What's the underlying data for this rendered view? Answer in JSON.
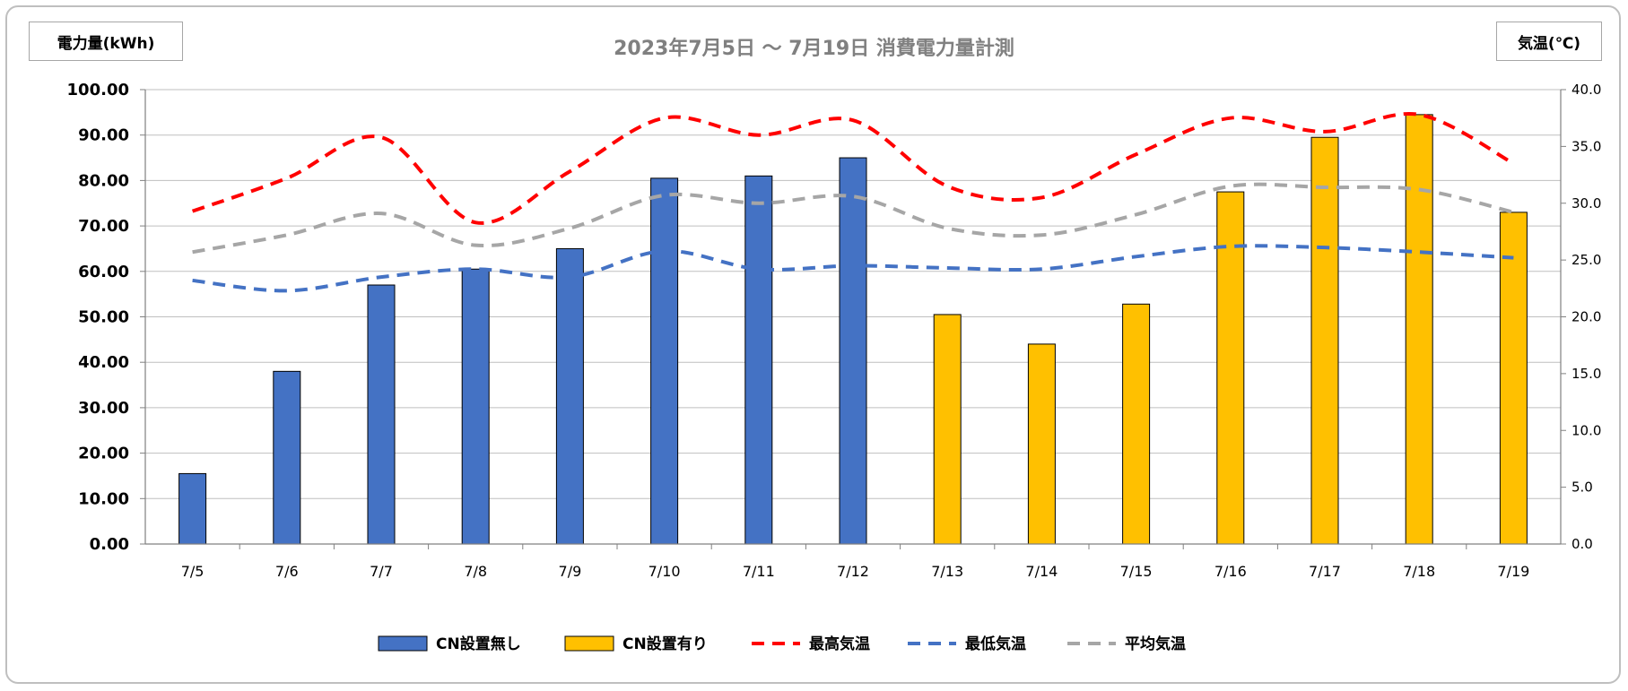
{
  "chart_data": {
    "type": "bar+line",
    "title": "2023年7月5日 ～ 7月19日 消費電力量計測",
    "y_left_label": "電力量(kWh)",
    "y_right_label": "気温(℃)",
    "ylim_left": [
      0,
      100
    ],
    "ylim_right": [
      0,
      40
    ],
    "left_ticks": [
      "0.00",
      "10.00",
      "20.00",
      "30.00",
      "40.00",
      "50.00",
      "60.00",
      "70.00",
      "80.00",
      "90.00",
      "100.00"
    ],
    "right_ticks": [
      "0.0",
      "5.0",
      "10.0",
      "15.0",
      "20.0",
      "25.0",
      "30.0",
      "35.0",
      "40.0"
    ],
    "categories": [
      "7/5",
      "7/6",
      "7/7",
      "7/8",
      "7/9",
      "7/10",
      "7/11",
      "7/12",
      "7/13",
      "7/14",
      "7/15",
      "7/16",
      "7/17",
      "7/18",
      "7/19"
    ],
    "grid": true,
    "legend_position": "bottom",
    "bar_series": [
      {
        "name": "CN設置無し",
        "color": "#4472C4",
        "values": [
          15.5,
          38.0,
          57.0,
          60.5,
          65.0,
          80.5,
          81.0,
          85.0,
          null,
          null,
          null,
          null,
          null,
          null,
          null
        ]
      },
      {
        "name": "CN設置有り",
        "color": "#FFC000",
        "values": [
          null,
          null,
          null,
          null,
          null,
          null,
          null,
          null,
          50.5,
          44.0,
          52.8,
          77.5,
          89.5,
          94.5,
          73.0
        ]
      }
    ],
    "line_series": [
      {
        "name": "最高気温",
        "color": "#FF0000",
        "values": [
          29.3,
          32.2,
          35.8,
          28.3,
          32.8,
          37.5,
          36.0,
          37.3,
          31.5,
          30.5,
          34.3,
          37.5,
          36.3,
          37.8,
          33.5
        ]
      },
      {
        "name": "最低気温",
        "color": "#4472C4",
        "values": [
          23.2,
          22.3,
          23.5,
          24.2,
          23.5,
          25.8,
          24.2,
          24.5,
          24.3,
          24.2,
          25.3,
          26.2,
          26.1,
          25.7,
          25.2
        ]
      },
      {
        "name": "平均気温",
        "color": "#A6A6A6",
        "values": [
          25.7,
          27.2,
          29.1,
          26.3,
          27.8,
          30.7,
          30.0,
          30.6,
          27.8,
          27.2,
          29.0,
          31.5,
          31.4,
          31.2,
          29.2
        ]
      }
    ]
  }
}
